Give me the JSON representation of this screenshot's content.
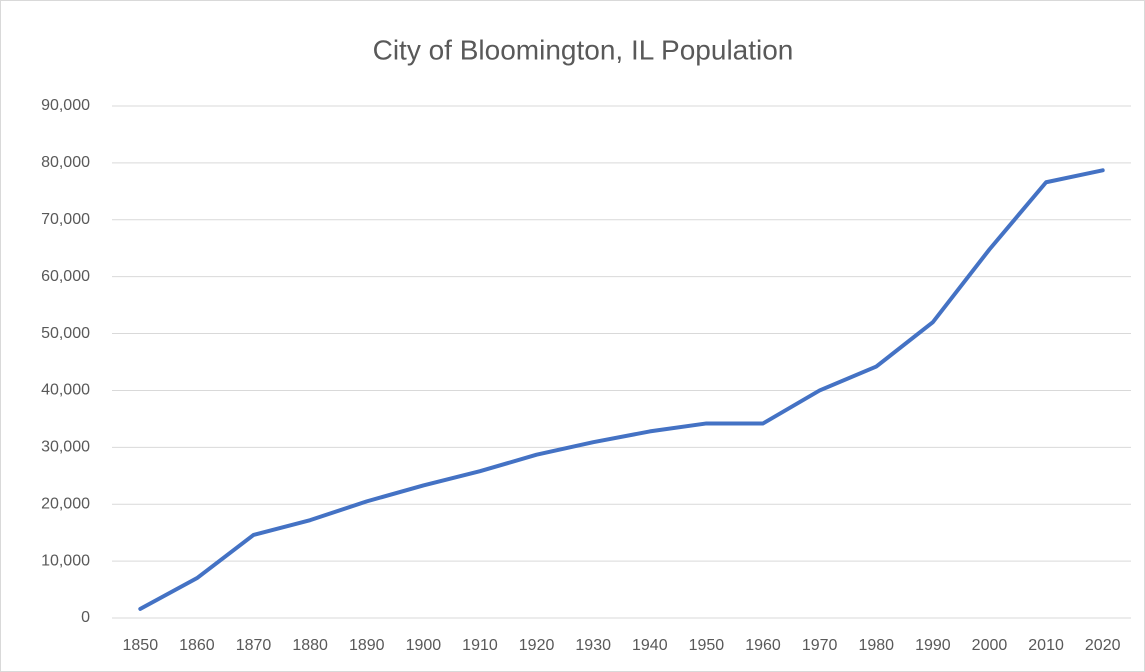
{
  "chart_data": {
    "type": "line",
    "title": "City of Bloomington, IL Population",
    "categories": [
      "1850",
      "1860",
      "1870",
      "1880",
      "1890",
      "1900",
      "1910",
      "1920",
      "1930",
      "1940",
      "1950",
      "1960",
      "1970",
      "1980",
      "1990",
      "2000",
      "2010",
      "2020"
    ],
    "series": [
      {
        "name": "Population",
        "color": "#4472c4",
        "values": [
          1600,
          7000,
          14600,
          17200,
          20500,
          23300,
          25800,
          28700,
          30900,
          32800,
          34200,
          34200,
          40000,
          44200,
          52000,
          64800,
          76600,
          78700
        ]
      }
    ],
    "ylim": [
      0,
      90000
    ],
    "yticks": [
      0,
      {
        "value": 10000,
        "label": "10,000"
      },
      {
        "value": 20000,
        "label": "20,000"
      },
      {
        "value": 30000,
        "label": "30,000"
      },
      {
        "value": 40000,
        "label": "40,000"
      },
      {
        "value": 50000,
        "label": "50,000"
      },
      {
        "value": 60000,
        "label": "60,000"
      },
      {
        "value": 70000,
        "label": "70,000"
      },
      {
        "value": 80000,
        "label": "80,000"
      },
      {
        "value": 90000,
        "label": "90,000"
      }
    ],
    "grid": true
  }
}
